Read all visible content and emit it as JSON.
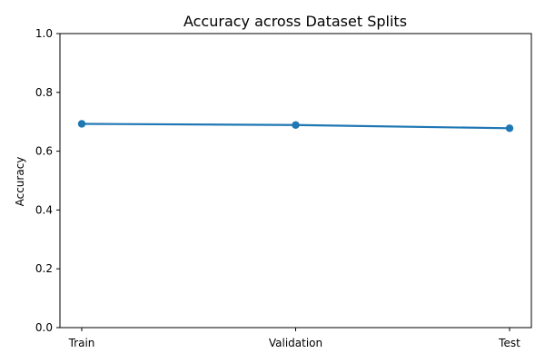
{
  "chart_data": {
    "type": "line",
    "title": "Accuracy across Dataset Splits",
    "xlabel": "",
    "ylabel": "Accuracy",
    "categories": [
      "Train",
      "Validation",
      "Test"
    ],
    "series": [
      {
        "values": [
          0.693,
          0.689,
          0.678
        ],
        "color": "#1f77b4",
        "marker": "circle"
      }
    ],
    "ylim": [
      0,
      1
    ],
    "yticks": [
      0.0,
      0.2,
      0.4,
      0.6,
      0.8,
      1.0
    ],
    "ytick_labels": [
      "0.0",
      "0.2",
      "0.4",
      "0.6",
      "0.8",
      "1.0"
    ],
    "grid": false,
    "legend": "none"
  }
}
